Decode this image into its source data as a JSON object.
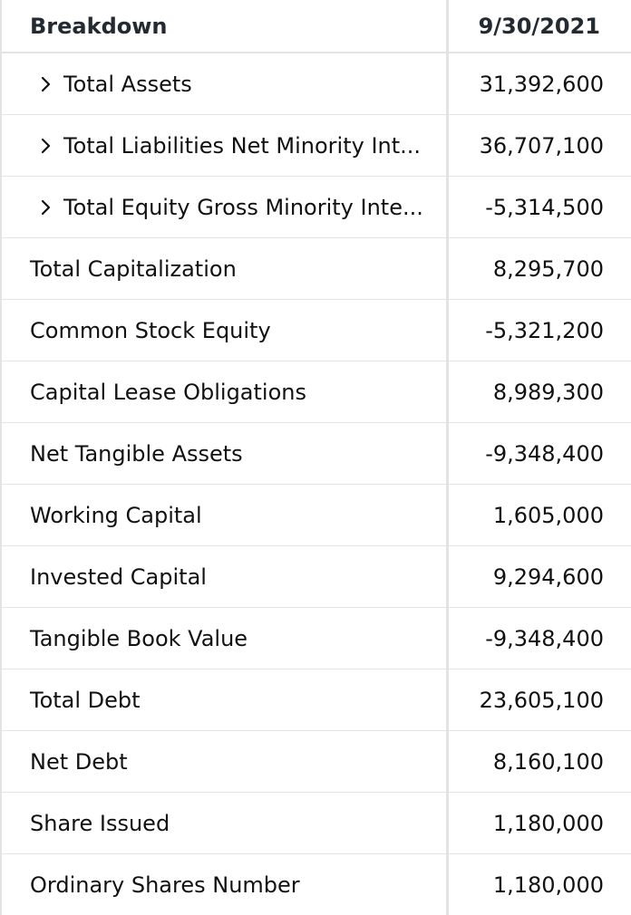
{
  "table": {
    "header": {
      "breakdown_label": "Breakdown",
      "date_label": "9/30/2021"
    },
    "rows": [
      {
        "label": "Total Assets",
        "value": "31,392,600",
        "expandable": true
      },
      {
        "label": "Total Liabilities Net Minority Int...",
        "value": "36,707,100",
        "expandable": true
      },
      {
        "label": "Total Equity Gross Minority Inte...",
        "value": "-5,314,500",
        "expandable": true
      },
      {
        "label": "Total Capitalization",
        "value": "8,295,700",
        "expandable": false
      },
      {
        "label": "Common Stock Equity",
        "value": "-5,321,200",
        "expandable": false
      },
      {
        "label": "Capital Lease Obligations",
        "value": "8,989,300",
        "expandable": false
      },
      {
        "label": "Net Tangible Assets",
        "value": "-9,348,400",
        "expandable": false
      },
      {
        "label": "Working Capital",
        "value": "1,605,000",
        "expandable": false
      },
      {
        "label": "Invested Capital",
        "value": "9,294,600",
        "expandable": false
      },
      {
        "label": "Tangible Book Value",
        "value": "-9,348,400",
        "expandable": false
      },
      {
        "label": "Total Debt",
        "value": "23,605,100",
        "expandable": false
      },
      {
        "label": "Net Debt",
        "value": "8,160,100",
        "expandable": false
      },
      {
        "label": "Share Issued",
        "value": "1,180,000",
        "expandable": false
      },
      {
        "label": "Ordinary Shares Number",
        "value": "1,180,000",
        "expandable": false
      }
    ]
  },
  "icons": {
    "expand": "chevron-right-icon"
  },
  "colors": {
    "border": "#e3e3e3",
    "text": "#111111"
  }
}
